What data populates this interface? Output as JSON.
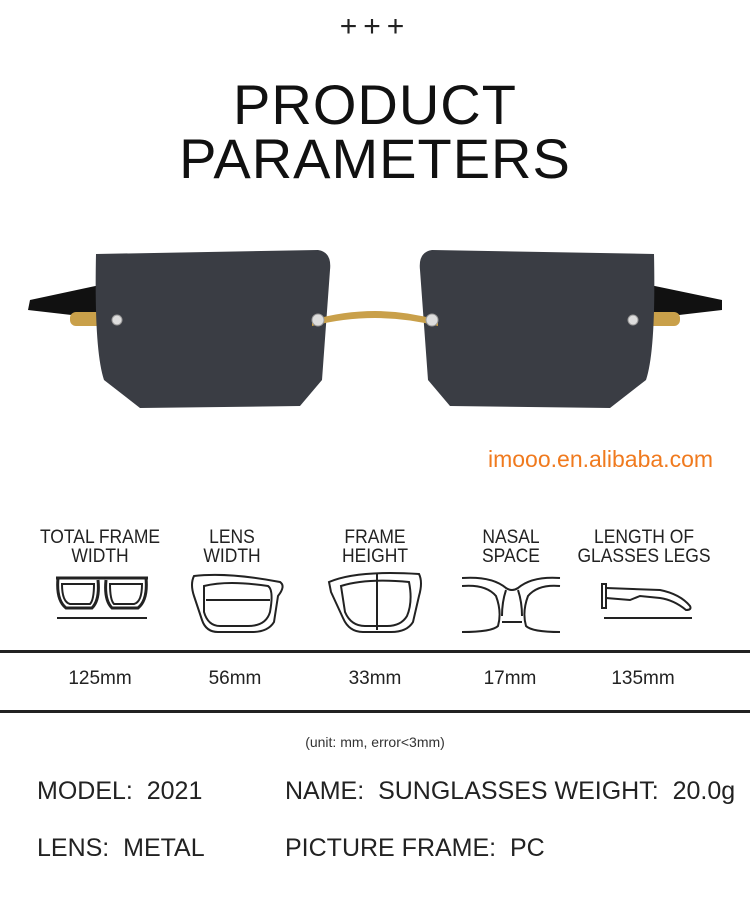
{
  "header": {
    "decoration": "+++",
    "title_line1": "PRODUCT",
    "title_line2": "PARAMETERS"
  },
  "watermark": "imooo.en.alibaba.com",
  "measurements": [
    {
      "label_line1": "TOTAL FRAME",
      "label_line2": "WIDTH",
      "value": "125mm",
      "icon": "glasses-front-icon"
    },
    {
      "label_line1": "LENS",
      "label_line2": "WIDTH",
      "value": "56mm",
      "icon": "lens-width-icon"
    },
    {
      "label_line1": "FRAME",
      "label_line2": "HEIGHT",
      "value": "33mm",
      "icon": "frame-height-icon"
    },
    {
      "label_line1": "NASAL",
      "label_line2": "SPACE",
      "value": "17mm",
      "icon": "nasal-space-icon"
    },
    {
      "label_line1": "LENGTH OF",
      "label_line2": "GLASSES LEGS",
      "value": "135mm",
      "icon": "temple-length-icon"
    }
  ],
  "unit_note": "(unit: mm, error<3mm)",
  "specs": {
    "model": "MODEL:  2021",
    "name_weight": "NAME:  SUNGLASSES WEIGHT:  20.0g",
    "lens": "LENS:  METAL",
    "picture_frame": "PICTURE FRAME:  PC"
  },
  "colors": {
    "watermark": "#f07a1e",
    "lens": "#3a3d44",
    "metal": "#c9a04a"
  }
}
